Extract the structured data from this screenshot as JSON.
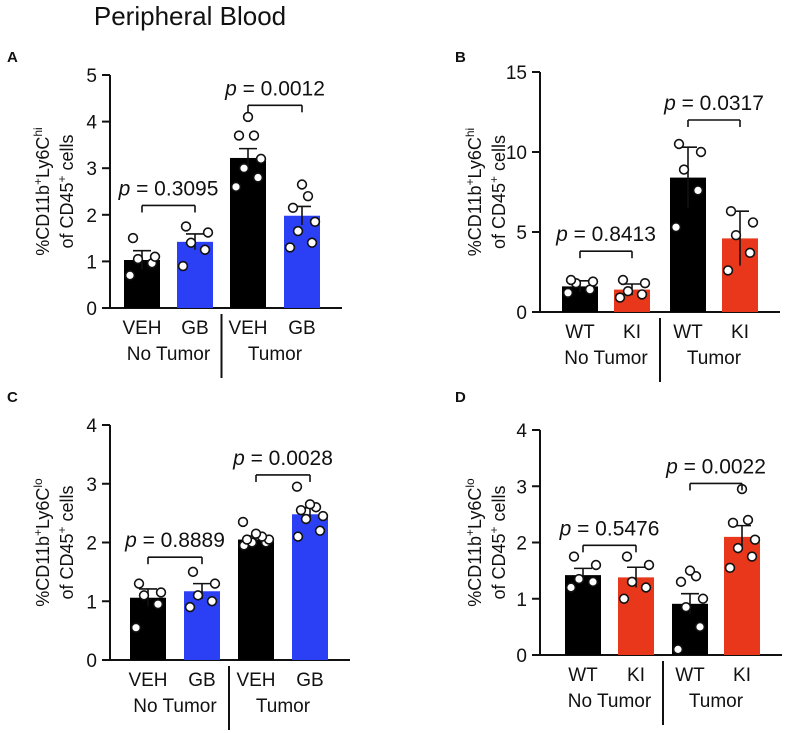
{
  "figure_title": "Peripheral Blood",
  "chart_data": [
    {
      "panel": "A",
      "type": "bar",
      "title": "",
      "ylabel": [
        "%CD11b",
        "+",
        "Ly6C",
        "hi"
      ],
      "ylabel2": [
        "of CD45",
        "+",
        " cells"
      ],
      "ylim": [
        0,
        5
      ],
      "yticks": [
        "0",
        "1",
        "2",
        "3",
        "4",
        "5"
      ],
      "categories": [
        "VEH",
        "GB",
        "VEH",
        "GB"
      ],
      "groups": [
        "No Tumor",
        "Tumor"
      ],
      "colors": [
        "#000000",
        "#2b3ff5",
        "#000000",
        "#2b3ff5"
      ],
      "values": [
        1.03,
        1.42,
        3.22,
        1.98
      ],
      "errors": [
        0.2,
        0.17,
        0.2,
        0.2
      ],
      "points": [
        [
          0.7,
          0.96,
          1.05,
          1.1,
          1.5
        ],
        [
          0.9,
          1.25,
          1.4,
          1.62,
          1.75
        ],
        [
          2.6,
          2.8,
          3.0,
          3.2,
          3.7,
          3.7,
          4.1
        ],
        [
          1.3,
          1.4,
          1.65,
          1.85,
          2.15,
          2.4,
          2.65
        ]
      ],
      "comparisons": [
        {
          "pair": [
            0,
            1
          ],
          "y": 2.2,
          "label_p": "p",
          "label_rest": " = 0.3095"
        },
        {
          "pair": [
            2,
            3
          ],
          "y": 4.35,
          "label_p": "p",
          "label_rest": " = 0.0012"
        }
      ]
    },
    {
      "panel": "B",
      "type": "bar",
      "title": "",
      "ylabel": [
        "%CD11b",
        "+",
        "Ly6C",
        "hi"
      ],
      "ylabel2": [
        "of CD45",
        "+",
        " cells"
      ],
      "ylim": [
        0,
        15
      ],
      "yticks": [
        "0",
        "5",
        "10",
        "15"
      ],
      "categories": [
        "WT",
        "KI",
        "WT",
        "KI"
      ],
      "groups": [
        "No Tumor",
        "Tumor"
      ],
      "colors": [
        "#000000",
        "#e8371a",
        "#000000",
        "#e8371a"
      ],
      "values": [
        1.6,
        1.4,
        8.4,
        4.6
      ],
      "errors": [
        0.35,
        0.35,
        1.9,
        1.7
      ],
      "points": [
        [
          1.2,
          1.4,
          1.8,
          1.9,
          2.0
        ],
        [
          0.9,
          1.1,
          1.3,
          1.8,
          2.0
        ],
        [
          5.3,
          7.6,
          8.9,
          10.0,
          10.5
        ],
        [
          2.6,
          3.7,
          4.8,
          5.6,
          6.3
        ]
      ],
      "comparisons": [
        {
          "pair": [
            0,
            1
          ],
          "y": 3.8,
          "label_p": "p",
          "label_rest": " = 0.8413"
        },
        {
          "pair": [
            2,
            3
          ],
          "y": 12.0,
          "label_p": "p",
          "label_rest": " = 0.0317"
        }
      ]
    },
    {
      "panel": "C",
      "type": "bar",
      "title": "",
      "ylabel": [
        "%CD11b",
        "+",
        "Ly6C",
        "lo"
      ],
      "ylabel2": [
        "of CD45",
        "+",
        " cells"
      ],
      "ylim": [
        0,
        4
      ],
      "yticks": [
        "0",
        "1",
        "2",
        "3",
        "4"
      ],
      "categories": [
        "VEH",
        "GB",
        "VEH",
        "GB"
      ],
      "groups": [
        "No Tumor",
        "Tumor"
      ],
      "colors": [
        "#000000",
        "#2b3ff5",
        "#000000",
        "#2b3ff5"
      ],
      "values": [
        1.06,
        1.17,
        2.05,
        2.48
      ],
      "errors": [
        0.15,
        0.13,
        0.06,
        0.11
      ],
      "points": [
        [
          0.55,
          0.95,
          1.1,
          1.15,
          1.3
        ],
        [
          0.9,
          1.0,
          1.1,
          1.3,
          1.5
        ],
        [
          1.95,
          2.0,
          2.0,
          2.05,
          2.05,
          2.1,
          2.15,
          2.35
        ],
        [
          2.1,
          2.2,
          2.4,
          2.45,
          2.55,
          2.6,
          2.65,
          2.95
        ]
      ],
      "comparisons": [
        {
          "pair": [
            0,
            1
          ],
          "y": 1.75,
          "label_p": "p",
          "label_rest": " = 0.8889"
        },
        {
          "pair": [
            2,
            3
          ],
          "y": 3.15,
          "label_p": "p",
          "label_rest": " = 0.0028"
        }
      ]
    },
    {
      "panel": "D",
      "type": "bar",
      "title": "",
      "ylabel": [
        "%CD11b",
        "+",
        "Ly6C",
        "lo"
      ],
      "ylabel2": [
        "of CD45",
        "+",
        " cells"
      ],
      "ylim": [
        0,
        4
      ],
      "yticks": [
        "0",
        "1",
        "2",
        "3",
        "4"
      ],
      "categories": [
        "WT",
        "KI",
        "WT",
        "KI"
      ],
      "groups": [
        "No Tumor",
        "Tumor"
      ],
      "colors": [
        "#000000",
        "#e8371a",
        "#000000",
        "#e8371a"
      ],
      "values": [
        1.42,
        1.38,
        0.91,
        2.1
      ],
      "errors": [
        0.12,
        0.18,
        0.18,
        0.2
      ],
      "points": [
        [
          1.2,
          1.3,
          1.35,
          1.6,
          1.75
        ],
        [
          1.0,
          1.2,
          1.3,
          1.6,
          1.75
        ],
        [
          0.1,
          0.5,
          0.85,
          1.0,
          1.3,
          1.4,
          1.5
        ],
        [
          1.55,
          1.75,
          1.9,
          2.05,
          2.35,
          2.4,
          2.95
        ]
      ],
      "comparisons": [
        {
          "pair": [
            0,
            1
          ],
          "y": 1.95,
          "label_p": "p",
          "label_rest": " = 0.5476"
        },
        {
          "pair": [
            2,
            3
          ],
          "y": 3.05,
          "label_p": "p",
          "label_rest": " = 0.0022"
        }
      ]
    }
  ]
}
